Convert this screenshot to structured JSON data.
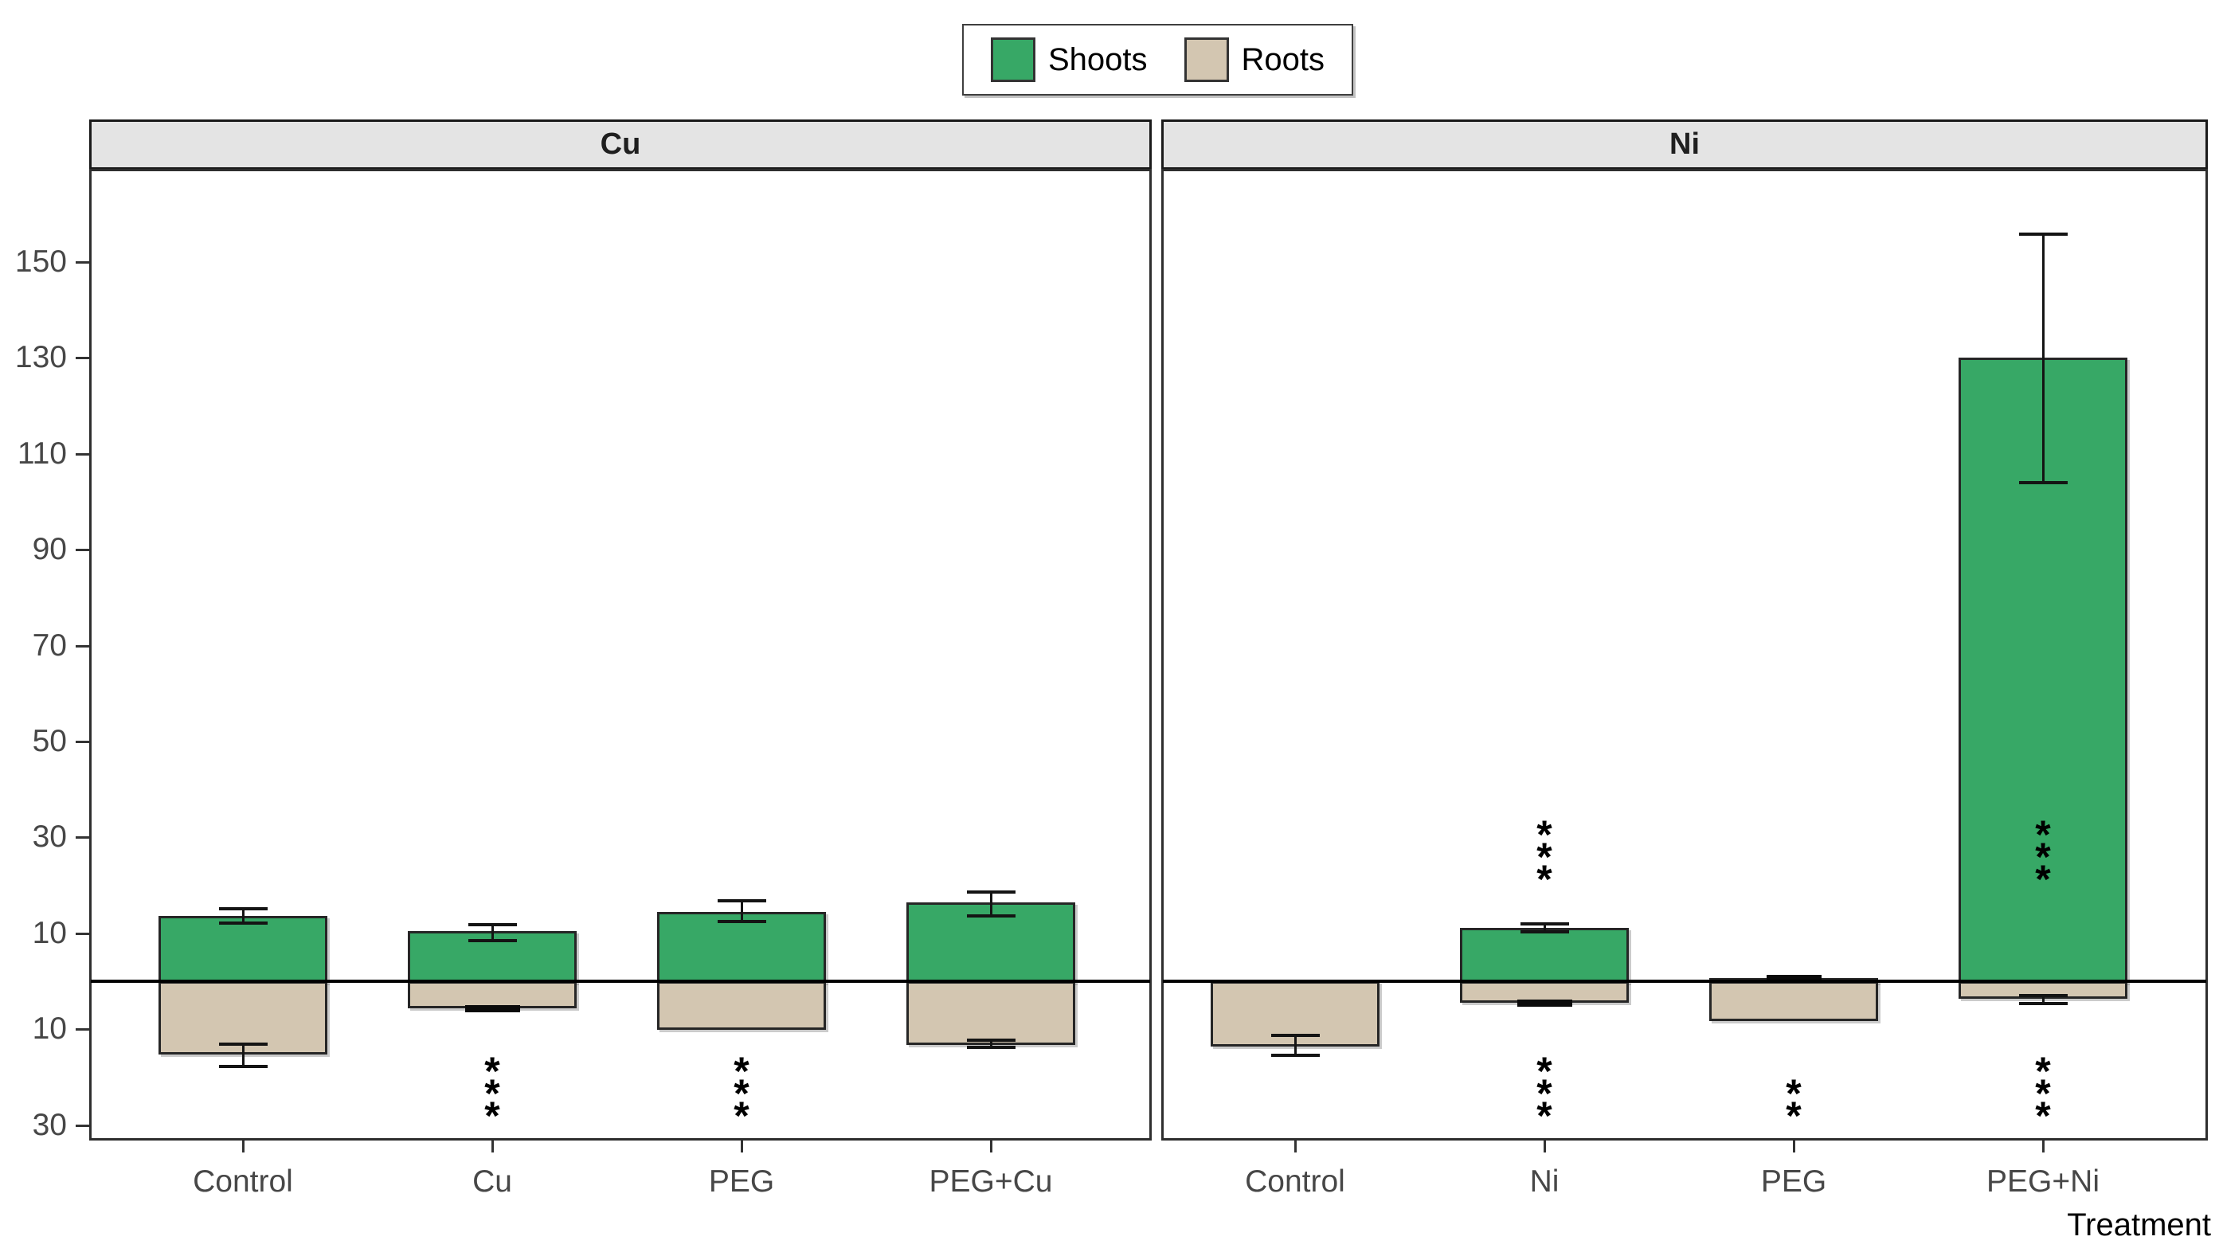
{
  "legend": {
    "items": [
      {
        "label": "Shoots",
        "color": "#37a866"
      },
      {
        "label": "Roots",
        "color": "#d3c6b1"
      }
    ]
  },
  "axis": {
    "x_title": "Treatment",
    "y_tick_values": [
      150,
      130,
      110,
      90,
      70,
      50,
      30,
      10,
      -10,
      -30
    ],
    "y_tick_labels": [
      "150",
      "130",
      "110",
      "90",
      "70",
      "50",
      "30",
      "10",
      "10",
      "30"
    ]
  },
  "chart_data": {
    "type": "bar",
    "title": "",
    "xlabel": "Treatment",
    "ylabel": "",
    "ylim": [
      -33,
      169
    ],
    "grid": false,
    "legend_position": "top",
    "zero_line": 0,
    "series_names": [
      "Shoots",
      "Roots"
    ],
    "facets": [
      {
        "label": "Cu",
        "categories": [
          "Control",
          "Cu",
          "PEG",
          "PEG+Cu"
        ],
        "shoots": {
          "values": [
            13.7,
            10.5,
            14.5,
            16.5
          ],
          "err_low": [
            12.2,
            8.5,
            12.5,
            13.7
          ],
          "err_high": [
            15.2,
            12.0,
            17.0,
            18.8
          ]
        },
        "roots": {
          "values": [
            -15.3,
            -5.7,
            -10.2,
            -13.3
          ],
          "err_low": [
            -17.8,
            -6.2,
            null,
            -13.8
          ],
          "err_high": [
            -12.9,
            -5.2,
            null,
            -12.2
          ]
        },
        "sig_above": [
          "",
          "",
          "",
          ""
        ],
        "sig_below": [
          "",
          "***",
          "***",
          ""
        ]
      },
      {
        "label": "Ni",
        "categories": [
          "Control",
          "Ni",
          "PEG",
          "PEG+Ni"
        ],
        "shoots": {
          "values": [
            0,
            11.2,
            0.6,
            130
          ],
          "err_low": [
            null,
            10.3,
            0.2,
            104
          ],
          "err_high": [
            null,
            12.1,
            1.0,
            156
          ]
        },
        "roots": {
          "values": [
            -13.7,
            -4.5,
            -8.3,
            -3.7
          ],
          "err_low": [
            -15.5,
            -5.0,
            null,
            -4.6
          ],
          "err_high": [
            -11.2,
            -4.0,
            null,
            -2.9
          ]
        },
        "sig_above": [
          "",
          "***",
          "",
          "***"
        ],
        "sig_below": [
          "",
          "***",
          "**",
          "***"
        ]
      }
    ]
  }
}
